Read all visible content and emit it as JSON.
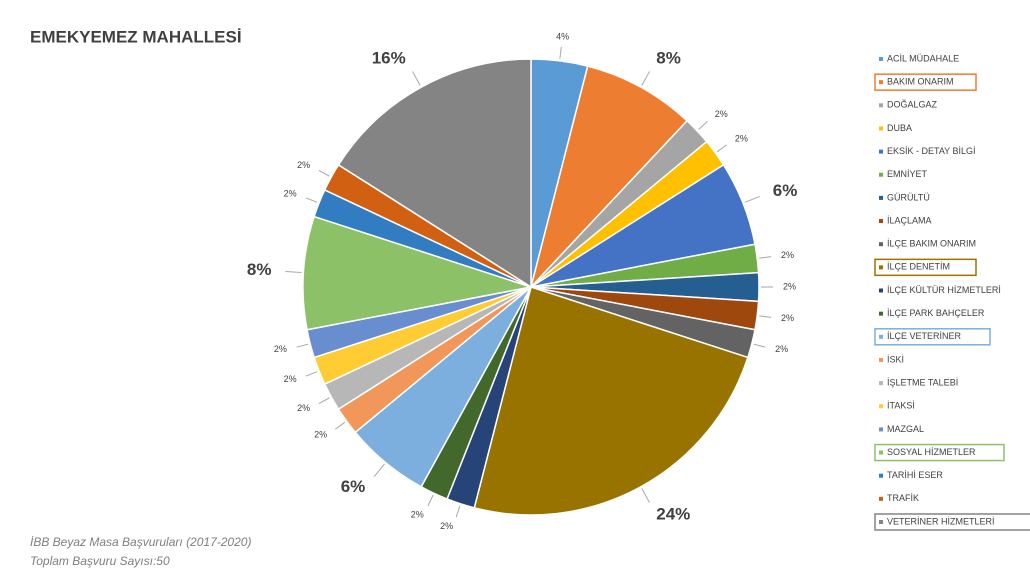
{
  "chart_data": {
    "type": "pie",
    "title": "EMEKYEMEZ MAHALLESİ",
    "footnotes": [
      "İBB Beyaz Masa Başvuruları (2017-2020)",
      "Toplam Başvuru Sayısı:50"
    ],
    "categories": [
      "ACİL MÜDAHALE",
      "BAKIM ONARIM",
      "DOĞALGAZ",
      "DUBA",
      "EKSİK - DETAY BİLGİ",
      "EMNİYET",
      "GÜRÜLTÜ",
      "İLAÇLAMA",
      "İLÇE BAKIM ONARIM",
      "İLÇE DENETİM",
      "İLÇE KÜLTÜR HİZMETLERİ",
      "İLÇE PARK BAHÇELER",
      "İLÇE VETERİNER",
      "İSKİ",
      "İŞLETME TALEBİ",
      "İTAKSİ",
      "MAZGAL",
      "SOSYAL HİZMETLER",
      "TARİHİ ESER",
      "TRAFİK",
      "VETERİNER HİZMETLERİ"
    ],
    "values": [
      4,
      8,
      2,
      2,
      6,
      2,
      2,
      2,
      2,
      24,
      2,
      2,
      6,
      2,
      2,
      2,
      2,
      8,
      2,
      2,
      16
    ],
    "value_labels": [
      "4%",
      "8%",
      "2%",
      "2%",
      "6%",
      "2%",
      "2%",
      "2%",
      "2%",
      "24%",
      "2%",
      "2%",
      "6%",
      "2%",
      "2%",
      "2%",
      "2%",
      "8%",
      "2%",
      "2%",
      "16%"
    ],
    "colors": [
      "#5b9bd5",
      "#ed7d31",
      "#a5a5a5",
      "#ffc000",
      "#4472c4",
      "#70ad47",
      "#255e91",
      "#9e480e",
      "#636363",
      "#997300",
      "#264478",
      "#43682b",
      "#7cafdd",
      "#f1975a",
      "#b7b7b7",
      "#ffcd33",
      "#698ed0",
      "#8cc168",
      "#327dc2",
      "#d26012",
      "#848484"
    ],
    "legend_boxed": [
      false,
      true,
      false,
      false,
      false,
      false,
      false,
      false,
      false,
      true,
      false,
      false,
      true,
      false,
      false,
      false,
      false,
      true,
      false,
      false,
      true
    ],
    "legend": "right"
  }
}
